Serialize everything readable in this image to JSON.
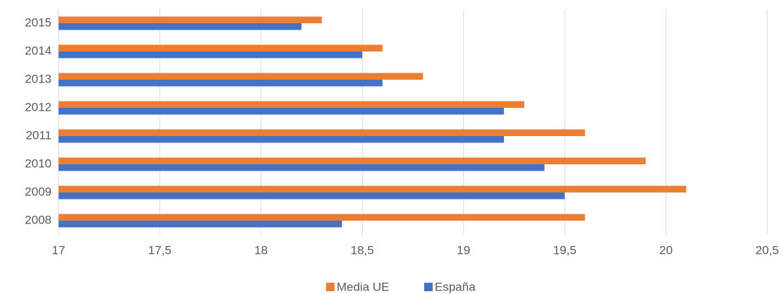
{
  "chart_data": {
    "type": "barh",
    "categories": [
      "2008",
      "2009",
      "2010",
      "2011",
      "2012",
      "2013",
      "2014",
      "2015"
    ],
    "series": [
      {
        "name": "Media UE",
        "color": "#ed7d31",
        "values": [
          19.6,
          20.1,
          19.9,
          19.6,
          19.3,
          18.8,
          18.6,
          18.3
        ]
      },
      {
        "name": "España",
        "color": "#4472c4",
        "values": [
          18.4,
          19.5,
          19.4,
          19.2,
          19.2,
          18.6,
          18.5,
          18.2
        ]
      }
    ],
    "xlim": [
      17,
      20.5
    ],
    "xticks": [
      17,
      {
        "value": 17.5,
        "label": "17,5"
      },
      18,
      {
        "value": 18.5,
        "label": "18,5"
      },
      19,
      {
        "value": 19.5,
        "label": "19,5"
      },
      20,
      {
        "value": 20.5,
        "label": "20,5"
      }
    ],
    "grid": true,
    "legend": "bottom"
  }
}
